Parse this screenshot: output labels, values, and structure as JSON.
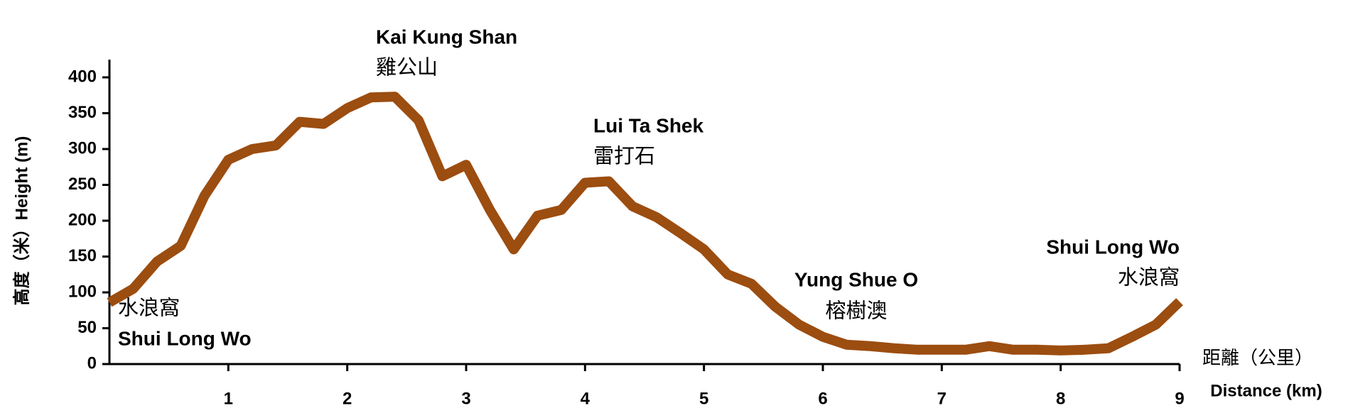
{
  "chart_data": {
    "type": "line",
    "y_label": "高度（米）Height (m)",
    "x_label_zh": "距離（公里）",
    "x_label": "Distance (km)",
    "x": [
      0,
      0.2,
      0.4,
      0.6,
      0.8,
      1.0,
      1.2,
      1.4,
      1.6,
      1.8,
      2.0,
      2.2,
      2.4,
      2.6,
      2.8,
      3.0,
      3.2,
      3.4,
      3.6,
      3.8,
      4.0,
      4.2,
      4.4,
      4.6,
      4.8,
      5.0,
      5.2,
      5.4,
      5.6,
      5.8,
      6.0,
      6.2,
      6.4,
      6.6,
      6.8,
      7.0,
      7.2,
      7.4,
      7.6,
      7.8,
      8.0,
      8.2,
      8.4,
      8.6,
      8.8,
      9.0
    ],
    "series": [
      {
        "name": "Height",
        "color": "#9c4d10",
        "values": [
          86,
          105,
          143,
          165,
          235,
          285,
          300,
          305,
          338,
          335,
          357,
          372,
          373,
          340,
          262,
          278,
          215,
          160,
          207,
          215,
          253,
          255,
          220,
          205,
          183,
          160,
          125,
          112,
          80,
          55,
          38,
          27,
          25,
          22,
          20,
          20,
          20,
          25,
          20,
          20,
          19,
          20,
          22,
          38,
          55,
          87
        ]
      }
    ],
    "xlim": [
      0,
      9
    ],
    "xticks": [
      1,
      2,
      3,
      4,
      5,
      6,
      7,
      8,
      9
    ],
    "ylim": [
      0,
      400
    ],
    "yticks": [
      0,
      50,
      100,
      150,
      200,
      250,
      300,
      350,
      400
    ],
    "annotations": [
      {
        "zh": "水浪窩",
        "en": "Shui Long Wo"
      },
      {
        "en": "Kai Kung Shan",
        "zh": "雞公山"
      },
      {
        "en": "Lui Ta Shek",
        "zh": "雷打石"
      },
      {
        "en": "Yung Shue O",
        "zh": "榕樹澳"
      },
      {
        "en": "Shui Long Wo",
        "zh": "水浪窩"
      }
    ]
  }
}
